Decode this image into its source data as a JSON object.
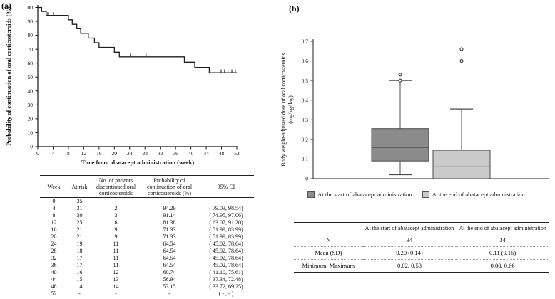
{
  "panels": {
    "a": {
      "label": "(a)"
    },
    "b": {
      "label": "(b)"
    }
  },
  "chart_data": [
    {
      "type": "line",
      "subtype": "kaplan-meier-step",
      "title": "",
      "xlabel": "Time from abatacept administration (week)",
      "ylabel": "Probability of continuation of oral corticosteroids (%)",
      "xlim": [
        0,
        52
      ],
      "ylim": [
        0,
        100
      ],
      "xticks": [
        0,
        4,
        8,
        12,
        16,
        20,
        24,
        28,
        32,
        36,
        40,
        44,
        48,
        52
      ],
      "yticks": [
        0,
        10,
        20,
        30,
        40,
        50,
        60,
        70,
        80,
        90,
        100
      ],
      "grid": false,
      "line_color": "#1f1f1f",
      "series": [
        {
          "name": "Probability of continuation of oral corticosteroids",
          "step_points": [
            [
              0,
              100
            ],
            [
              1,
              97.14
            ],
            [
              2.2,
              94.29
            ],
            [
              8,
              91.14
            ],
            [
              9,
              87.9
            ],
            [
              10.2,
              84.7
            ],
            [
              11.2,
              81.38
            ],
            [
              13.2,
              78.0
            ],
            [
              14.8,
              74.7
            ],
            [
              16,
              71.33
            ],
            [
              20,
              67.9
            ],
            [
              21.3,
              64.54
            ],
            [
              38.3,
              60.74
            ],
            [
              41,
              56.94
            ],
            [
              44.8,
              53.15
            ],
            [
              52,
              53.15
            ]
          ],
          "censor_marks": [
            [
              2.6,
              94.29
            ],
            [
              4.1,
              94.29
            ],
            [
              24.2,
              64.54
            ],
            [
              28.3,
              64.54
            ],
            [
              47.9,
              53.15
            ],
            [
              48.8,
              53.15
            ],
            [
              49.7,
              53.15
            ],
            [
              50.7,
              53.15
            ],
            [
              51.6,
              53.15
            ]
          ]
        }
      ]
    },
    {
      "type": "box",
      "title": "",
      "ylabel_line1": "Body weight-adjusted dose of oral corticosteroids",
      "ylabel_line2": "(mg/kg/day)",
      "ylim": [
        0,
        0.7
      ],
      "yticks": [
        0,
        0.1,
        0.2,
        0.3,
        0.4,
        0.5,
        0.6,
        0.7
      ],
      "grid": false,
      "legend_position": "bottom",
      "series": [
        {
          "name": "At the start of abatacept administration",
          "fill": "#8b8b8b",
          "whisker_low": 0.02,
          "q1": 0.09,
          "median": 0.16,
          "q3": 0.255,
          "whisker_high": 0.5,
          "outliers": [
            0.5,
            0.53
          ]
        },
        {
          "name": "At the end of abatacept administration",
          "fill": "#cacaca",
          "whisker_low": 0.0,
          "q1": 0.0,
          "median": 0.06,
          "q3": 0.145,
          "whisker_high": 0.355,
          "outliers": [
            0.6,
            0.66
          ]
        }
      ]
    }
  ],
  "table_a": {
    "headers": [
      "Week",
      "At risk",
      "No. of patients\ndiscontinued oral\ncorticosteroids",
      "Probability of\ncontinuation of  oral\ncorticosteroids (%)",
      "95% CI"
    ],
    "rows": [
      [
        "0",
        "35",
        "-",
        "-",
        "-"
      ],
      [
        "4",
        "31",
        "2",
        "94.29",
        "( 79.03, 98.54)"
      ],
      [
        "8",
        "30",
        "3",
        "91.14",
        "( 74.95, 97.06)"
      ],
      [
        "12",
        "25",
        "6",
        "81.38",
        "( 63.07, 91.20)"
      ],
      [
        "16",
        "21",
        "9",
        "71.33",
        "( 51.99, 83.99)"
      ],
      [
        "20",
        "21",
        "9",
        "71.33",
        "( 51.99, 83.99)"
      ],
      [
        "24",
        "19",
        "11",
        "64.54",
        "( 45.02, 78.64)"
      ],
      [
        "28",
        "18",
        "11",
        "64.54",
        "( 45.02, 78.64)"
      ],
      [
        "32",
        "17",
        "11",
        "64.54",
        "( 45.02, 78.64)"
      ],
      [
        "36",
        "17",
        "11",
        "64.54",
        "( 45.02, 78.64)"
      ],
      [
        "40",
        "16",
        "12",
        "60.74",
        "( 41.10, 75.61)"
      ],
      [
        "44",
        "15",
        "13",
        "56.94",
        "( 37.34, 72.48)"
      ],
      [
        "48",
        "14",
        "14",
        "53.15",
        "( 33.72, 69.25)"
      ],
      [
        "52",
        "-",
        "-",
        "-",
        "( - , - )"
      ]
    ]
  },
  "table_b": {
    "headers": [
      "",
      "At the start of abatacept administration",
      "At the end of abatacept administration"
    ],
    "rows": [
      [
        "N",
        "34",
        "34"
      ],
      [
        "Mean (SD)",
        "0.20 (0.14)",
        "0.11 (0.16)"
      ],
      [
        "Minimum, Maximum",
        "0.02, 0.53",
        "0.00, 0.66"
      ]
    ]
  }
}
